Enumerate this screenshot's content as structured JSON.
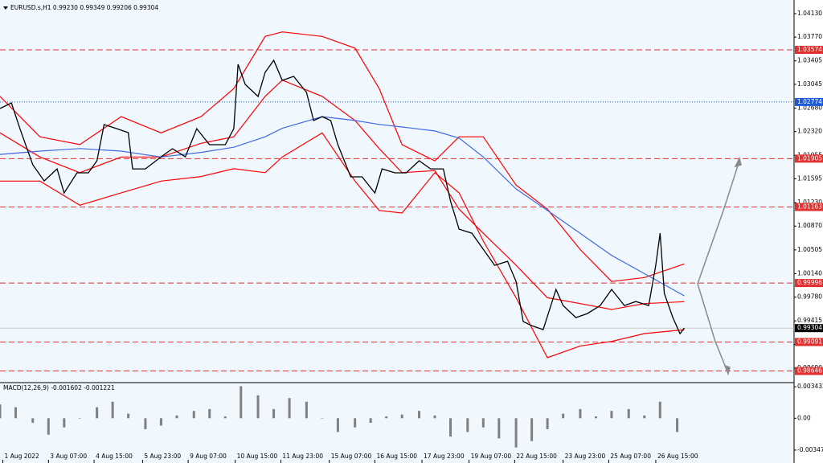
{
  "chart_data": {
    "type": "line",
    "title": "EURUSD.s,H1  0.99230 0.99349 0.99206 0.99304",
    "x": [
      0,
      8,
      14,
      23,
      31,
      40,
      45,
      54,
      62,
      68,
      73,
      82,
      90,
      93,
      102,
      113,
      121,
      130,
      138,
      147,
      158,
      164,
      167,
      172,
      181,
      186,
      192,
      198,
      206,
      215,
      220,
      226,
      232,
      237,
      246,
      254,
      263,
      268,
      277,
      285,
      294,
      302,
      311,
      316,
      322,
      331,
      339,
      347,
      356,
      362,
      367,
      373,
      381,
      390,
      395,
      404,
      412,
      421,
      429,
      438,
      446,
      455,
      460,
      463,
      466,
      472,
      477,
      480
    ],
    "series": [
      {
        "color": "#000000",
        "values": [
          1.02674,
          1.0276,
          1.02365,
          1.0181,
          1.01563,
          1.01748,
          1.01378,
          1.01687,
          1.01687,
          1.01872,
          1.02427,
          1.02365,
          1.02304,
          1.01748,
          1.01748,
          1.01933,
          1.02057,
          1.01933,
          1.02365,
          1.02119,
          1.02119,
          1.02365,
          1.03353,
          1.03044,
          1.02859,
          1.03229,
          1.03414,
          1.03106,
          1.03167,
          1.02921,
          1.02489,
          1.0255,
          1.02489,
          1.02119,
          1.01625,
          1.01625,
          1.01378,
          1.01748,
          1.01687,
          1.01687,
          1.01872,
          1.01748,
          1.01748,
          1.01255,
          1.00823,
          1.00761,
          1.00514,
          1.00268,
          1.00329,
          1.00021,
          0.99404,
          0.99342,
          0.9928,
          0.99897,
          0.99651,
          0.99465,
          0.99527,
          0.99651,
          0.99897,
          0.99651,
          0.99712,
          0.99651,
          1.00268,
          1.00761,
          0.99836,
          0.99465,
          0.99219,
          0.99304
        ]
      }
    ],
    "bands": {
      "x": [
        0,
        28,
        56,
        85,
        113,
        141,
        164,
        186,
        198,
        226,
        249,
        266,
        282,
        305,
        322,
        339,
        362,
        384,
        407,
        429,
        452,
        480
      ],
      "series": [
        {
          "color": "#ff0000",
          "values": [
            1.0286,
            1.0224,
            1.0212,
            1.0255,
            1.023,
            1.0255,
            1.0298,
            1.0378,
            1.0385,
            1.0378,
            1.036,
            1.0298,
            1.0212,
            1.0187,
            1.0224,
            1.0224,
            1.015,
            1.0113,
            1.0051,
            1.0002,
            1.0008,
            1.0029
          ]
        },
        {
          "color": "#ff0000",
          "values": [
            1.023,
            1.0193,
            1.0169,
            1.0193,
            1.0193,
            1.0214,
            1.0224,
            1.0286,
            1.0311,
            1.0286,
            1.0249,
            1.0206,
            1.0169,
            1.0172,
            1.0113,
            1.0076,
            1.0027,
            0.9977,
            0.9968,
            0.9959,
            0.9968,
            0.9971
          ]
        },
        {
          "color": "#ff0000",
          "values": [
            1.0156,
            1.0156,
            1.0119,
            1.0138,
            1.0156,
            1.0163,
            1.0175,
            1.0169,
            1.0193,
            1.023,
            1.0156,
            1.0111,
            1.0107,
            1.0169,
            1.0138,
            1.0064,
            0.9977,
            0.9885,
            0.9903,
            0.991,
            0.9922,
            0.9928
          ]
        },
        {
          "color": "#4169e1",
          "values": [
            1.0197,
            1.0202,
            1.0206,
            1.0202,
            1.0193,
            1.02,
            1.0208,
            1.0224,
            1.0237,
            1.0255,
            1.0249,
            1.0243,
            1.0239,
            1.0233,
            1.0222,
            1.0193,
            1.0144,
            1.0111,
            1.0076,
            1.0042,
            1.0014,
            0.998
          ]
        }
      ]
    },
    "levels": [
      {
        "value": 1.03574,
        "color": "#e03030",
        "style": "dash"
      },
      {
        "value": 1.02774,
        "color": "#1e5ad8",
        "style": "dot"
      },
      {
        "value": 1.01905,
        "color": "#e03030",
        "style": "dash"
      },
      {
        "value": 1.01163,
        "color": "#e03030",
        "style": "dash"
      },
      {
        "value": 0.99996,
        "color": "#e03030",
        "style": "dash"
      },
      {
        "value": 0.99304,
        "color": "#000000",
        "style": "solid"
      },
      {
        "value": 0.99091,
        "color": "#e03030",
        "style": "dash"
      },
      {
        "value": 0.98646,
        "color": "#e03030",
        "style": "dash"
      }
    ],
    "xlim": [
      0,
      557
    ],
    "xticks": [
      {
        "value": 2,
        "label": "1 Aug 2022"
      },
      {
        "value": 34,
        "label": "3 Aug 07:00"
      },
      {
        "value": 66,
        "label": "4 Aug 15:00"
      },
      {
        "value": 100,
        "label": "5 Aug 23:00"
      },
      {
        "value": 132,
        "label": "9 Aug 07:00"
      },
      {
        "value": 165,
        "label": "10 Aug 15:00"
      },
      {
        "value": 197,
        "label": "11 Aug 23:00"
      },
      {
        "value": 231,
        "label": "15 Aug 07:00"
      },
      {
        "value": 263,
        "label": "16 Aug 15:00"
      },
      {
        "value": 296,
        "label": "17 Aug 23:00"
      },
      {
        "value": 329,
        "label": "19 Aug 07:00"
      },
      {
        "value": 361,
        "label": "22 Aug 15:00"
      },
      {
        "value": 395,
        "label": "23 Aug 23:00"
      },
      {
        "value": 427,
        "label": "25 Aug 07:00"
      },
      {
        "value": 460,
        "label": "26 Aug 15:00"
      }
    ],
    "ylim": [
      0.9848,
      1.0429
    ],
    "yticks": [
      {
        "value": 1.0413,
        "label": "1.04130"
      },
      {
        "value": 1.0377,
        "label": "1.03770"
      },
      1.03405,
      1.03045,
      {
        "value": 1.0268,
        "label": "1.02680"
      },
      {
        "value": 1.0232,
        "label": "1.02320"
      },
      1.01955,
      1.01595,
      {
        "value": 1.0123,
        "label": "1.01230"
      },
      {
        "value": 1.0087,
        "label": "1.00870"
      },
      1.00505,
      {
        "value": 1.0014,
        "label": "1.00140"
      },
      {
        "value": 0.9978,
        "label": "0.99780"
      },
      0.99415,
      0.99055,
      {
        "value": 0.9869,
        "label": "0.98690"
      }
    ],
    "macd": {
      "title": "MACD(12,26,9) -0.001602 -0.001221",
      "color": "#808080",
      "x": [
        0,
        11,
        23,
        34,
        45,
        56,
        68,
        79,
        90,
        102,
        113,
        124,
        136,
        147,
        158,
        169,
        181,
        192,
        203,
        215,
        226,
        237,
        249,
        260,
        271,
        282,
        294,
        305,
        316,
        328,
        339,
        350,
        362,
        373,
        384,
        395,
        407,
        418,
        429,
        441,
        452,
        463,
        475
      ],
      "values": [
        0.0015,
        0.0012,
        -0.0005,
        -0.0018,
        -0.001,
        0.0,
        0.0012,
        0.0018,
        0.0005,
        -0.0012,
        -0.0008,
        0.0003,
        0.0008,
        0.001,
        0.0002,
        0.0035,
        0.0025,
        0.001,
        0.0022,
        0.0018,
        0.0,
        -0.0015,
        -0.001,
        -0.0005,
        0.0002,
        0.0004,
        0.0008,
        0.0003,
        -0.002,
        -0.0015,
        -0.001,
        -0.0022,
        -0.0032,
        -0.0025,
        -0.0012,
        0.0005,
        0.001,
        0.0002,
        0.0008,
        0.001,
        0.0003,
        0.0018,
        -0.0015
      ],
      "ylim": [
        -0.0048,
        0.0038
      ],
      "yticks": [
        0.003432,
        {
          "value": 0,
          "label": "0.00"
        },
        -0.003478
      ]
    }
  }
}
